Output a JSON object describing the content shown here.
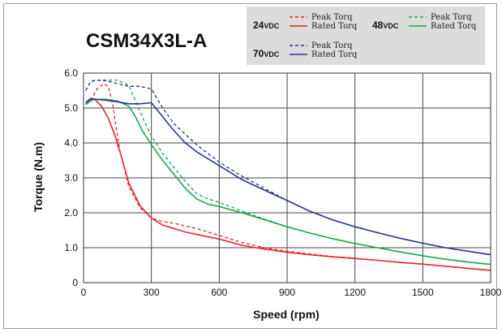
{
  "chart_data": {
    "type": "line",
    "title": "CSM34X3L-A",
    "xlabel": "Speed (rpm)",
    "ylabel": "Torque (N.m)",
    "xlim": [
      0,
      1800
    ],
    "ylim": [
      0,
      6.0
    ],
    "xticks": [
      0,
      300,
      600,
      900,
      1200,
      1500,
      1800
    ],
    "xtick_labels": [
      "0",
      "300",
      "600",
      "900",
      "1200",
      "1500",
      "1800"
    ],
    "yticks": [
      0,
      1.0,
      2.0,
      3.0,
      4.0,
      5.0,
      6.0
    ],
    "ytick_labels": [
      "0",
      "1.0",
      "2.0",
      "3.0",
      "4.0",
      "5.0",
      "6.0"
    ],
    "grid": true,
    "legend": {
      "placement": "top-right",
      "groups": [
        {
          "voltage": "24",
          "unit": "VDC",
          "peak_label": "Peak Torq",
          "rated_label": "Rated Torq",
          "color": "#e8262b"
        },
        {
          "voltage": "48",
          "unit": "VDC",
          "peak_label": "Peak Torq",
          "rated_label": "Rated Torq",
          "color": "#18a94a"
        },
        {
          "voltage": "70",
          "unit": "VDC",
          "peak_label": "Peak Torq",
          "rated_label": "Rated Torq",
          "color": "#2b3596"
        }
      ]
    },
    "series": [
      {
        "group": 0,
        "kind": "peak",
        "dash": true,
        "color": "#e8262b",
        "x": [
          10,
          30,
          60,
          90,
          110,
          130,
          160,
          200,
          250,
          300,
          350,
          400,
          450,
          500,
          600,
          700,
          800,
          900,
          1000,
          1100,
          1200,
          1300,
          1400,
          1500,
          1600,
          1700,
          1800
        ],
        "y": [
          5.15,
          5.2,
          5.55,
          5.7,
          5.6,
          5.05,
          3.8,
          2.75,
          2.15,
          1.85,
          1.75,
          1.7,
          1.62,
          1.55,
          1.35,
          1.15,
          1.0,
          0.9,
          0.82,
          0.75,
          0.7,
          0.64,
          0.58,
          0.53,
          0.47,
          0.41,
          0.36
        ]
      },
      {
        "group": 0,
        "kind": "rated",
        "dash": false,
        "color": "#e8262b",
        "x": [
          10,
          30,
          50,
          80,
          110,
          140,
          170,
          200,
          250,
          300,
          350,
          400,
          450,
          500,
          600,
          700,
          800,
          900,
          1000,
          1100,
          1200,
          1300,
          1400,
          1500,
          1600,
          1700,
          1800
        ],
        "y": [
          5.1,
          5.25,
          5.25,
          5.05,
          4.7,
          4.2,
          3.55,
          2.85,
          2.2,
          1.85,
          1.65,
          1.55,
          1.45,
          1.38,
          1.25,
          1.07,
          0.96,
          0.87,
          0.8,
          0.74,
          0.69,
          0.64,
          0.58,
          0.53,
          0.47,
          0.41,
          0.35
        ]
      },
      {
        "group": 1,
        "kind": "peak",
        "dash": true,
        "color": "#18a94a",
        "x": [
          10,
          30,
          60,
          100,
          150,
          200,
          230,
          270,
          300,
          350,
          400,
          450,
          500,
          550,
          600,
          700,
          800,
          900,
          1000,
          1100,
          1200,
          1300,
          1400,
          1500,
          1600,
          1700,
          1800
        ],
        "y": [
          5.5,
          5.75,
          5.8,
          5.8,
          5.8,
          5.65,
          5.2,
          4.6,
          4.2,
          3.7,
          3.3,
          2.9,
          2.55,
          2.4,
          2.3,
          2.05,
          1.82,
          1.6,
          1.42,
          1.26,
          1.12,
          1.0,
          0.88,
          0.77,
          0.67,
          0.59,
          0.52
        ]
      },
      {
        "group": 1,
        "kind": "rated",
        "dash": false,
        "color": "#18a94a",
        "x": [
          10,
          30,
          50,
          100,
          150,
          200,
          230,
          260,
          300,
          350,
          400,
          450,
          500,
          550,
          600,
          700,
          800,
          900,
          1000,
          1100,
          1200,
          1300,
          1400,
          1500,
          1600,
          1700,
          1800
        ],
        "y": [
          5.1,
          5.2,
          5.25,
          5.25,
          5.2,
          5.05,
          4.75,
          4.35,
          3.95,
          3.5,
          3.1,
          2.7,
          2.4,
          2.25,
          2.18,
          2.0,
          1.8,
          1.6,
          1.42,
          1.26,
          1.12,
          1.0,
          0.88,
          0.77,
          0.67,
          0.59,
          0.52
        ]
      },
      {
        "group": 2,
        "kind": "peak",
        "dash": true,
        "color": "#2b3596",
        "x": [
          10,
          30,
          50,
          100,
          150,
          200,
          250,
          300,
          350,
          400,
          450,
          500,
          600,
          700,
          800,
          900,
          1000,
          1100,
          1200,
          1300,
          1400,
          1500,
          1600,
          1700,
          1800
        ],
        "y": [
          5.5,
          5.75,
          5.8,
          5.78,
          5.7,
          5.62,
          5.62,
          5.55,
          5.0,
          4.55,
          4.25,
          3.95,
          3.45,
          3.05,
          2.7,
          2.35,
          2.05,
          1.8,
          1.6,
          1.43,
          1.27,
          1.13,
          1.0,
          0.9,
          0.8
        ]
      },
      {
        "group": 2,
        "kind": "rated",
        "dash": false,
        "color": "#2b3596",
        "x": [
          10,
          30,
          60,
          100,
          150,
          200,
          250,
          300,
          350,
          400,
          450,
          500,
          600,
          700,
          800,
          900,
          1000,
          1100,
          1200,
          1300,
          1400,
          1500,
          1600,
          1700,
          1800
        ],
        "y": [
          5.15,
          5.27,
          5.25,
          5.22,
          5.18,
          5.12,
          5.12,
          5.15,
          4.75,
          4.35,
          4.0,
          3.75,
          3.35,
          2.95,
          2.65,
          2.35,
          2.05,
          1.8,
          1.6,
          1.43,
          1.27,
          1.13,
          1.0,
          0.9,
          0.8
        ]
      }
    ]
  }
}
